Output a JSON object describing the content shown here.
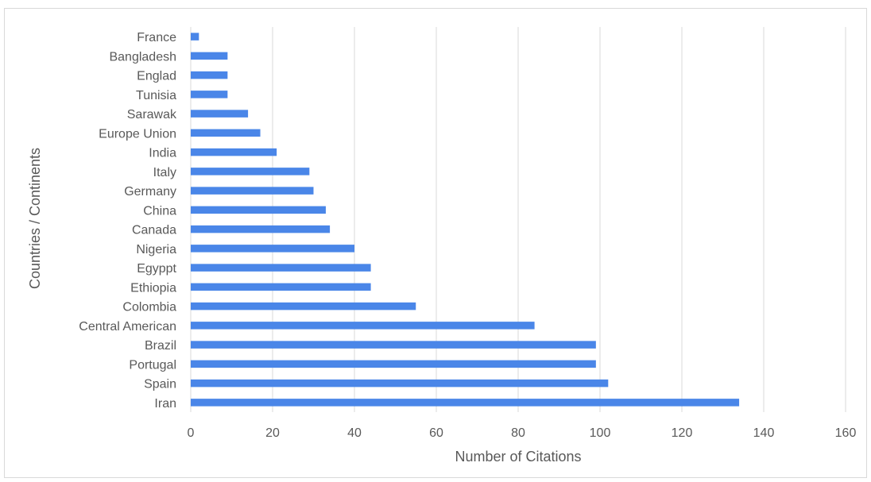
{
  "chart_data": {
    "type": "bar",
    "orientation": "horizontal",
    "categories": [
      "Iran",
      "Spain",
      "Portugal",
      "Brazil",
      "Central American",
      "Colombia",
      "Ethiopia",
      "Egyppt",
      "Nigeria",
      "Canada",
      "China",
      "Germany",
      "Italy",
      "India",
      "Europe Union",
      "Sarawak",
      "Tunisia",
      "Englad",
      "Bangladesh",
      "France"
    ],
    "values": [
      134,
      102,
      99,
      99,
      84,
      55,
      44,
      44,
      40,
      34,
      33,
      30,
      29,
      21,
      17,
      14,
      9,
      9,
      9,
      2
    ],
    "xlabel": "Number of Citations",
    "ylabel": "Countries / Continents",
    "xlim": [
      0,
      160
    ],
    "xticks": [
      "0",
      "20",
      "40",
      "60",
      "80",
      "100",
      "120",
      "140",
      "160"
    ],
    "grid": "vertical",
    "legend": "none",
    "bar_color": "#4a86e8",
    "grid_color": "#d9d9d9"
  }
}
